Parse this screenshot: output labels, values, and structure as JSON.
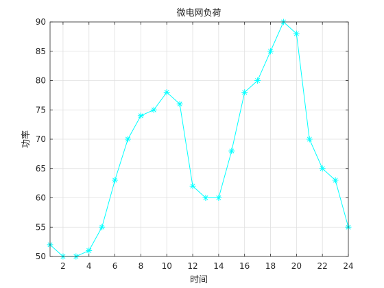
{
  "chart_data": {
    "type": "line",
    "title": "微电网负荷",
    "xlabel": "时间",
    "ylabel": "功率",
    "xlim": [
      1,
      24
    ],
    "ylim": [
      50,
      90
    ],
    "xticks": [
      2,
      4,
      6,
      8,
      10,
      12,
      14,
      16,
      18,
      20,
      22,
      24
    ],
    "yticks": [
      50,
      55,
      60,
      65,
      70,
      75,
      80,
      85,
      90
    ],
    "grid": true,
    "series": [
      {
        "color": "#00ffff",
        "marker": "asterisk",
        "x": [
          1,
          2,
          3,
          4,
          5,
          6,
          7,
          8,
          9,
          10,
          11,
          12,
          13,
          14,
          15,
          16,
          17,
          18,
          19,
          20,
          21,
          22,
          23,
          24
        ],
        "y": [
          52,
          50,
          50,
          51,
          55,
          63,
          70,
          74,
          75,
          78,
          76,
          62,
          60,
          60,
          68,
          78,
          80,
          85,
          90,
          88,
          70,
          65,
          63,
          55
        ]
      }
    ]
  }
}
